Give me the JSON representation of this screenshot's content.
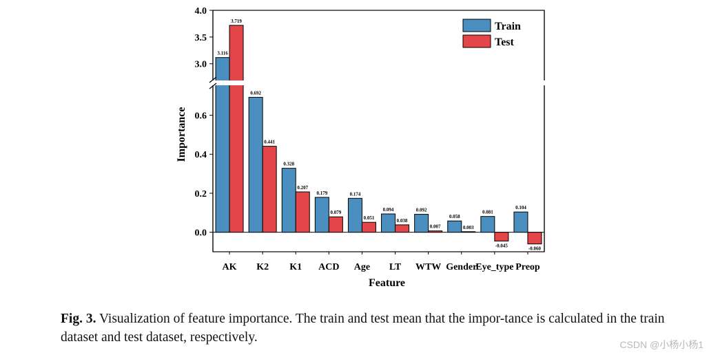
{
  "chart_data": {
    "type": "bar",
    "xlabel": "Feature",
    "ylabel": "Importance",
    "categories": [
      "AK",
      "K2",
      "K1",
      "ACD",
      "Age",
      "LT",
      "WTW",
      "Gender",
      "Eye_type",
      "Preop"
    ],
    "series": [
      {
        "name": "Train",
        "color": "#4a8fc0",
        "values": [
          3.116,
          0.692,
          0.328,
          0.179,
          0.174,
          0.094,
          0.092,
          0.058,
          0.081,
          0.104
        ],
        "labels": [
          "3.116",
          "0.692",
          "0.328",
          "0.179",
          "0.174",
          "0.094",
          "0.092",
          "0.058",
          "0.081",
          "0.104"
        ]
      },
      {
        "name": "Test",
        "color": "#e34548",
        "values": [
          3.719,
          0.441,
          0.207,
          0.079,
          0.051,
          0.038,
          0.007,
          0.003,
          -0.045,
          -0.06
        ],
        "labels": [
          "3.719",
          "0.441",
          "0.207",
          "0.079",
          "0.051",
          "0.038",
          "0.007",
          "0.003",
          "-0.045",
          "-0.060"
        ]
      }
    ],
    "broken_axis": {
      "lower_range": [
        -0.1,
        0.75
      ],
      "upper_range": [
        2.7,
        4.0
      ]
    },
    "yticks_lower": [
      "0.0",
      "0.2",
      "0.4",
      "0.6"
    ],
    "yticks_upper": [
      "3.0",
      "3.5",
      "4.0"
    ],
    "legend_position": "top-right",
    "grid": false
  },
  "caption": {
    "label": "Fig. 3.",
    "text": " Visualization of feature importance. The train and test mean that the impor-tance is calculated in the train dataset and test dataset, respectively."
  },
  "watermark": "CSDN @小杨小杨1"
}
